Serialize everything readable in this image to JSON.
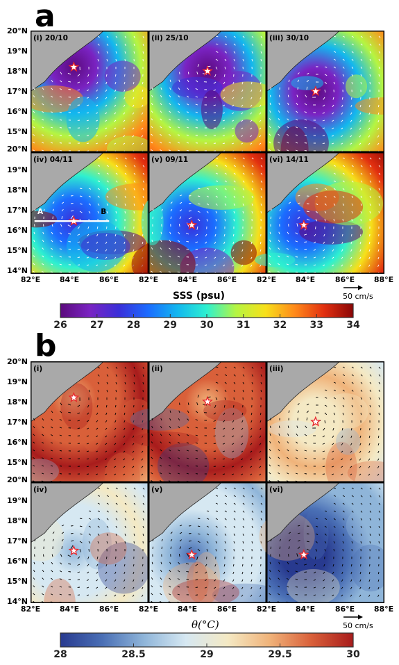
{
  "figure": {
    "panel_a_letter": "a",
    "panel_b_letter": "b",
    "a_labels": [
      "(i) 20/10",
      "(ii) 25/10",
      "(iii) 30/10",
      "(iv) 04/11",
      "(v) 09/11",
      "(vi) 14/11"
    ],
    "b_labels": [
      "(i)",
      "(ii)",
      "(iii)",
      "(iv)",
      "(v)",
      "(vi)"
    ],
    "section_label_a": "A",
    "section_label_b": "B",
    "lat_labels": [
      "20°N",
      "19°N",
      "18°N",
      "17°N",
      "16°N",
      "15°N",
      "14°N"
    ],
    "lat_labels_top": [
      "20°N",
      "19°N",
      "18°N",
      "17°N",
      "16°N",
      "15°N",
      "20°N"
    ],
    "lon_labels": [
      "82°E",
      "84°E",
      "86°E",
      "82°E",
      "84°E",
      "86°E",
      "82°E",
      "84°E",
      "86°E",
      "88°E"
    ],
    "scale_label_a": "50 cm/s",
    "scale_label_b": "50 cm/s",
    "colors": {
      "sss_colormap": [
        "#5b0a7d",
        "#7a23c2",
        "#3a2fd9",
        "#1b6cff",
        "#12b7ef",
        "#2ef0d0",
        "#b5f542",
        "#f7e01a",
        "#ff8a1a",
        "#e23010",
        "#8a0606"
      ],
      "theta_colormap": [
        "#283a8f",
        "#4a6fb5",
        "#8fb5d9",
        "#d6e8f2",
        "#f4e9c4",
        "#f0b37a",
        "#d9603a",
        "#a81c1c"
      ],
      "land": "#a9a9a9",
      "vectors_a": "#ffffff",
      "vectors_b": "#000000",
      "star_outline": "#e8252a"
    }
  },
  "chart_data": [
    {
      "type": "heatmap",
      "title": "",
      "colorbar_label": "SSS (psu)",
      "colorbar_ticks": [
        "26",
        "27",
        "28",
        "29",
        "30",
        "31",
        "32",
        "33",
        "34"
      ],
      "colorbar_range": [
        26,
        34
      ],
      "xlim": [
        82,
        88
      ],
      "ylim": [
        14,
        20
      ],
      "panels": [
        {
          "label": "(i) 20/10",
          "star_lon": 84.2,
          "star_lat": 18.2
        },
        {
          "label": "(ii) 25/10",
          "star_lon": 85.0,
          "star_lat": 18.0
        },
        {
          "label": "(iii) 30/10",
          "star_lon": 84.5,
          "star_lat": 17.0
        },
        {
          "label": "(iv) 04/11",
          "star_lon": 84.2,
          "star_lat": 16.6
        },
        {
          "label": "(v) 09/11",
          "star_lon": 84.2,
          "star_lat": 16.4
        },
        {
          "label": "(vi) 14/11",
          "star_lon": 83.9,
          "star_lat": 16.4
        }
      ],
      "section_line": {
        "from_label": "A",
        "to_label": "B",
        "lat": 16.6,
        "lon_start": 82.2,
        "lon_end": 86.0
      }
    },
    {
      "type": "heatmap",
      "title": "",
      "colorbar_label": "θ(°C)",
      "colorbar_ticks": [
        "28",
        "28.5",
        "29",
        "29.5",
        "30"
      ],
      "colorbar_range": [
        28,
        30
      ],
      "xlim": [
        82,
        88
      ],
      "ylim": [
        14,
        20
      ],
      "panels": [
        {
          "label": "(i)",
          "star_lon": 84.2,
          "star_lat": 18.2
        },
        {
          "label": "(ii)",
          "star_lon": 85.0,
          "star_lat": 18.0
        },
        {
          "label": "(iii)",
          "star_lon": 84.5,
          "star_lat": 17.0
        },
        {
          "label": "(iv)",
          "star_lon": 84.2,
          "star_lat": 16.6
        },
        {
          "label": "(v)",
          "star_lon": 84.2,
          "star_lat": 16.4
        },
        {
          "label": "(vi)",
          "star_lon": 83.9,
          "star_lat": 16.4
        }
      ]
    }
  ]
}
